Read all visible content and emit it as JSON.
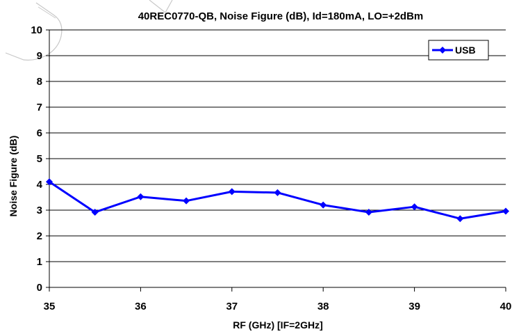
{
  "chart_data": {
    "type": "line",
    "title": "40REC0770-QB, Noise Figure (dB), Id=180mA, LO=+2dBm",
    "xlabel": "RF (GHz) [IF=2GHz]",
    "ylabel": "Noise Figure (dB)",
    "xlim": [
      35,
      40
    ],
    "ylim": [
      0,
      10
    ],
    "xticks": [
      "35",
      "36",
      "37",
      "38",
      "39",
      "40"
    ],
    "yticks": [
      "0",
      "1",
      "2",
      "3",
      "4",
      "5",
      "6",
      "7",
      "8",
      "9",
      "10"
    ],
    "grid": "horizontal",
    "legend_position": "top-right",
    "x": [
      35,
      35.5,
      36,
      36.5,
      37,
      37.5,
      38,
      38.5,
      39,
      39.5,
      40
    ],
    "series": [
      {
        "name": "USB",
        "color": "#0000ff",
        "values": [
          4.1,
          2.92,
          3.52,
          3.36,
          3.72,
          3.68,
          3.2,
          2.92,
          3.13,
          2.67,
          2.96
        ]
      }
    ]
  }
}
